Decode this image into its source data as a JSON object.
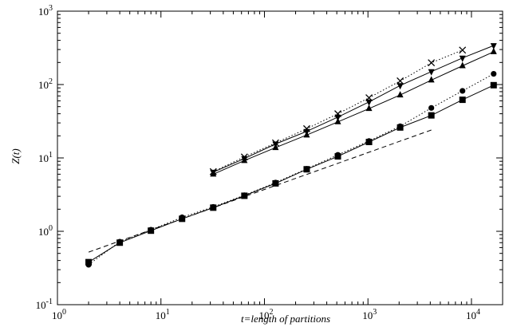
{
  "chart_data": {
    "type": "line",
    "title": "",
    "xlabel": "t=length of partitions",
    "ylabel": "Z(t)",
    "log_x": true,
    "log_y": true,
    "xlim": [
      1,
      20000
    ],
    "ylim": [
      0.1,
      1000
    ],
    "grid": false,
    "x_ticks": [
      {
        "value": 1,
        "base": "10",
        "exp": "0"
      },
      {
        "value": 10,
        "base": "10",
        "exp": "1"
      },
      {
        "value": 100,
        "base": "10",
        "exp": "2"
      },
      {
        "value": 1000,
        "base": "10",
        "exp": "3"
      },
      {
        "value": 10000,
        "base": "10",
        "exp": "4"
      }
    ],
    "y_ticks": [
      {
        "value": 0.1,
        "base": "10",
        "exp": "-1"
      },
      {
        "value": 1,
        "base": "10",
        "exp": "0"
      },
      {
        "value": 10,
        "base": "10",
        "exp": "1"
      },
      {
        "value": 100,
        "base": "10",
        "exp": "2"
      },
      {
        "value": 1000,
        "base": "10",
        "exp": "3"
      }
    ],
    "series": [
      {
        "marker": "cross",
        "line": "dotted",
        "color": "#000000",
        "x": [
          32,
          64,
          128,
          256,
          512,
          1024,
          2048,
          4096,
          8192
        ],
        "y": [
          6.5,
          10.3,
          16.0,
          25.0,
          40.0,
          66.0,
          112.0,
          198.0,
          295.0
        ]
      },
      {
        "marker": "triangle-down",
        "line": "solid",
        "color": "#000000",
        "x": [
          32,
          64,
          128,
          256,
          512,
          1024,
          2048,
          4096,
          8192,
          16384
        ],
        "y": [
          6.4,
          9.8,
          15.5,
          23.0,
          36.0,
          58.0,
          97.0,
          150.0,
          230.0,
          340.0
        ]
      },
      {
        "marker": "triangle-up",
        "line": "solid",
        "color": "#000000",
        "x": [
          32,
          64,
          128,
          256,
          512,
          1024,
          2048,
          4096,
          8192,
          16384
        ],
        "y": [
          6.0,
          9.2,
          13.8,
          20.5,
          31.0,
          47.0,
          72.0,
          115.0,
          180.0,
          280.0
        ]
      },
      {
        "marker": "circle",
        "line": "dotted",
        "color": "#000000",
        "x": [
          2,
          4,
          8,
          16,
          32,
          64,
          128,
          256,
          512,
          1024,
          2048,
          4096,
          8192,
          16384
        ],
        "y": [
          0.35,
          0.72,
          1.05,
          1.55,
          2.15,
          3.1,
          4.6,
          7.1,
          11.0,
          17.0,
          27.0,
          48.0,
          82.0,
          140.0
        ]
      },
      {
        "marker": "square",
        "line": "solid",
        "color": "#000000",
        "x": [
          2,
          4,
          8,
          16,
          32,
          64,
          128,
          256,
          512,
          1024,
          2048,
          4096,
          8192,
          16384
        ],
        "y": [
          0.38,
          0.7,
          1.02,
          1.48,
          2.1,
          3.05,
          4.5,
          7.0,
          10.5,
          16.5,
          26.0,
          38.0,
          62.0,
          98.0
        ]
      },
      {
        "marker": "none",
        "line": "dashed",
        "color": "#000000",
        "x": [
          2,
          4096
        ],
        "y": [
          0.52,
          24.0
        ]
      }
    ]
  }
}
